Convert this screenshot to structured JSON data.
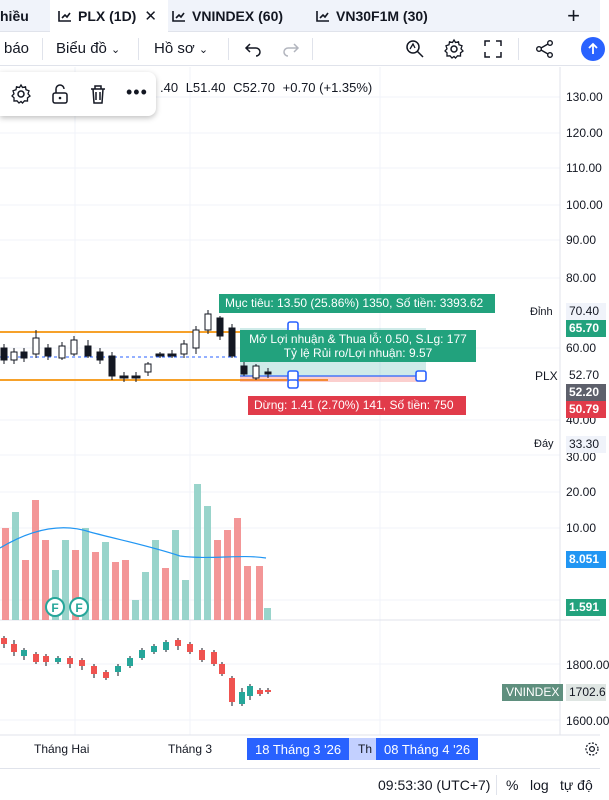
{
  "tabs": [
    {
      "label": "hiều",
      "active": false,
      "icon": "none"
    },
    {
      "label": "PLX (1D)",
      "active": true,
      "icon": "chart-icon"
    },
    {
      "label": "VNINDEX (60)",
      "active": false,
      "icon": "chart-icon"
    },
    {
      "label": "VN30F1M (30)",
      "active": false,
      "icon": "chart-icon"
    }
  ],
  "toolbar": {
    "bao": "báo",
    "bieu_do": "Biểu đồ",
    "ho_so": "Hồ sơ"
  },
  "ohlc": {
    "o": ".40",
    "l": "L51.40",
    "c": "C52.70",
    "chg": "+0.70 (+1.35%)"
  },
  "price_axis": [
    "130.00",
    "120.00",
    "110.00",
    "100.00",
    "90.00",
    "80.00",
    "60.00",
    "40.00",
    "30.00",
    "20.00",
    "10.00"
  ],
  "price_boxes": {
    "dinh_label": "Đỉnh",
    "dinh_value": "70.40",
    "target_box": "65.70",
    "plx_label": "PLX",
    "plx_value": "52.70",
    "entry_box": "52.20",
    "stop_box": "50.79",
    "day_label": "Đáy",
    "day_value": "33.30",
    "vol_box1": "8.051",
    "vol_box2": "1.591"
  },
  "position_tool": {
    "target": "Mục tiêu: 13.50 (25.86%) 1350, Số tiền: 3393.62",
    "pnl_line1": "Mở Lợi nhuận & Thua lỗ: 0.50, S.Lg: 177",
    "pnl_line2": "Tỷ lệ Rủi ro/Lợi nhuận: 9.57",
    "stop": "Dừng: 1.41 (2.70%) 141, Số tiền: 750"
  },
  "index_pane": {
    "axis": [
      "1800.00",
      "1600.00"
    ],
    "label": "VNINDEX",
    "value": "1702.6"
  },
  "time_axis": {
    "month1": "Tháng Hai",
    "month2": "Tháng 3",
    "pill1": "18 Tháng 3 '26",
    "pill_partial": "Th",
    "pill2": "08 Tháng 4 '26"
  },
  "footer": {
    "time": "09:53:30 (UTC+7)",
    "percent": "%",
    "log": "log",
    "auto": "tự độ"
  },
  "colors": {
    "up": "#26a69a",
    "down": "#ef5350",
    "target_green": "#22a27d",
    "stop_red": "#e13b4a",
    "blue": "#2962ff",
    "orange": "#f6a12a"
  }
}
